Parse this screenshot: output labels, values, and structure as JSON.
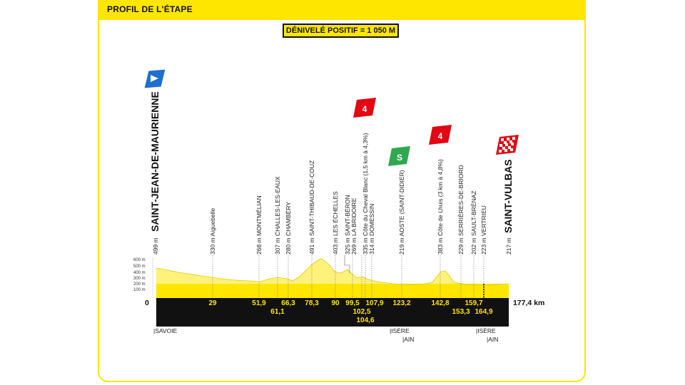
{
  "header": {
    "title": "PROFIL DE L'ÉTAPE",
    "elevation_banner": "DÉNIVELÉ POSITIF = 1 050 M"
  },
  "colors": {
    "brand_yellow": "#ffe600",
    "climb_red": "#e30613",
    "sprint_green": "#2fa84f",
    "start_blue": "#1f6fd0",
    "profile_fill": "#ffe600",
    "profile_shade": "#fff27a"
  },
  "icons": {
    "start": "start-flag-icon",
    "finish": "finish-flag-icon",
    "sprint": "sprint-flag-icon",
    "climb": "climb-category-icon"
  },
  "start_town": "SAINT-JEAN-DE-MAURIENNE",
  "finish_town": "SAINT-VULBAS",
  "distance_start": "0",
  "distance_total": "177,4 km",
  "altitude_ticks": [
    "600 m",
    "500 m",
    "400 m",
    "300 m",
    "200 m",
    "100 m"
  ],
  "waypoints": [
    {
      "label": "499 m",
      "name": "SAINT-JEAN-DE-MAURIENNE",
      "km": 0
    },
    {
      "label": "330 m Aiguebelle",
      "km": 29
    },
    {
      "label": "268 m MONTMÉLIAN",
      "km": 51.9
    },
    {
      "label": "307 m CHALLES-LES-EAUX",
      "km": 61.1
    },
    {
      "label": "280 m CHAMBÉRY",
      "km": 66.3
    },
    {
      "label": "491 m SAINT-THIBAUD-DE-COUZ",
      "km": 78.3
    },
    {
      "label": "403 m LES ÉCHELLES",
      "km": 90
    },
    {
      "label": "325 m SAINT-BÉRON",
      "km": 99.5
    },
    {
      "label": "269 m LA BRIDOIRE",
      "km": 102.5
    },
    {
      "label": "335 m Côte du Cheval Blanc (1,5 km à 4,3%)",
      "km": 104.6
    },
    {
      "label": "314 m DOMESSIN",
      "km": 107.9
    },
    {
      "label": "219 m AOSTE (SAINT-DIDIER)",
      "km": 123.2
    },
    {
      "label": "383 m Côte de Lhuis (3 km à 4,8%)",
      "km": 142.8
    },
    {
      "label": "229 m SERRIÈRES-DE-BRIORD",
      "km": 153.3
    },
    {
      "label": "202 m SAULT-BRÉNAZ",
      "km": 159.7
    },
    {
      "label": "223 m VERTRIEU",
      "km": 164.9
    },
    {
      "label": "217 m",
      "name": "SAINT-VULBAS",
      "km": 177.4
    }
  ],
  "km_markers_row1": [
    "29",
    "51,9",
    "66,3",
    "78,3",
    "90",
    "99,5",
    "107,9",
    "123,2",
    "142,8",
    "159,7"
  ],
  "km_markers_row2": [
    "61,1",
    "102,5",
    "153,3",
    "164,9"
  ],
  "km_markers_row3": [
    "104,6"
  ],
  "climbs": [
    {
      "category": "4",
      "name": "Côte du Cheval Blanc"
    },
    {
      "category": "4",
      "name": "Côte de Lhuis"
    }
  ],
  "sprint_label": "S",
  "departments": [
    {
      "text": "|SAVOIE"
    },
    {
      "text": "|ISÈRE"
    },
    {
      "text": "|AIN"
    },
    {
      "text": "|ISÈRE"
    },
    {
      "text": "|AIN"
    }
  ]
}
